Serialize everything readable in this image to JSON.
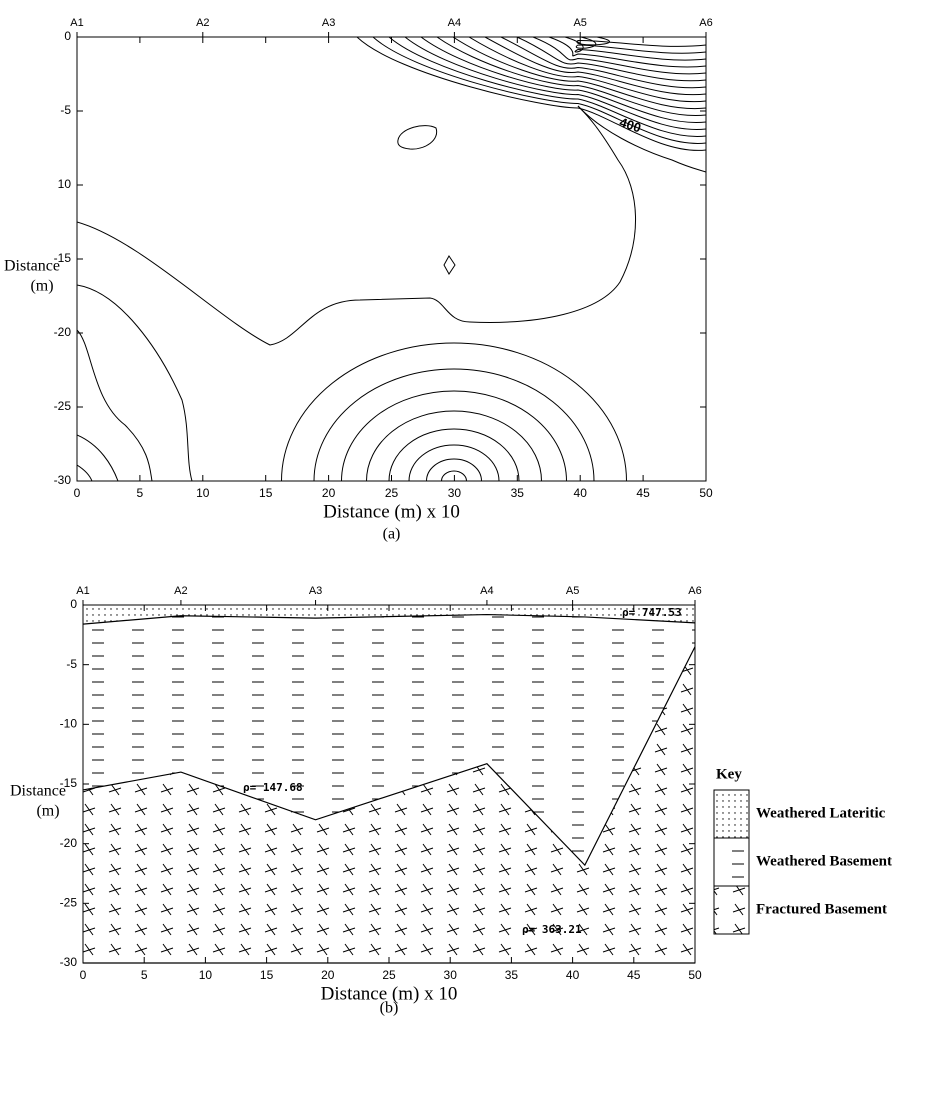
{
  "chart_data": [
    {
      "type": "contour",
      "station_labels": [
        "A1",
        "A2",
        "A3",
        "A4",
        "A5",
        "A6"
      ],
      "station_x": [
        0,
        10,
        20,
        30,
        40,
        50
      ],
      "xlim": [
        0,
        50
      ],
      "xticks": [
        0,
        5,
        10,
        15,
        20,
        25,
        30,
        35,
        40,
        45,
        50
      ],
      "ylim": [
        -30,
        0
      ],
      "yticks": [
        0,
        -5,
        {
          "value": -10,
          "label": "10"
        },
        -15,
        -20,
        -25,
        -30
      ],
      "xlabel": "Distance (m) x 10",
      "ylabel": [
        "Distance",
        "(m)"
      ],
      "contour_labels": [
        "400"
      ],
      "caption": "(a)"
    },
    {
      "type": "section",
      "station_labels": [
        "A1",
        "A2",
        "A3",
        "A4",
        "A5",
        "A6"
      ],
      "station_x": [
        0,
        8,
        19,
        33,
        40,
        50
      ],
      "x": [
        0,
        8,
        19,
        33,
        41,
        50
      ],
      "series": [
        {
          "name": "Weathered Lateritic",
          "values": [
            -1.6,
            -0.9,
            -1.1,
            -0.8,
            -1.0,
            -1.5
          ]
        },
        {
          "name": "Weathered Basement",
          "values": [
            -15.5,
            -14,
            -18,
            -13.3,
            -21.8,
            -3.5
          ]
        },
        {
          "name": "Fractured Basement",
          "values": [
            -30,
            -30,
            -30,
            -30,
            -30,
            -30
          ]
        }
      ],
      "xlim": [
        0,
        50
      ],
      "xticks": [
        0,
        5,
        10,
        15,
        20,
        25,
        30,
        35,
        40,
        45,
        50
      ],
      "ylim": [
        -30,
        0
      ],
      "yticks": [
        0,
        -5,
        -10,
        -15,
        -20,
        -25,
        -30
      ],
      "xlabel": "Distance (m) x 10",
      "ylabel": [
        "Distance",
        "(m)"
      ],
      "annotations": [
        "ρ= 747.53",
        "ρ= 147.68",
        "ρ= 363.21"
      ],
      "legend_title": "Key",
      "legend": "right",
      "caption": "(b)"
    }
  ]
}
